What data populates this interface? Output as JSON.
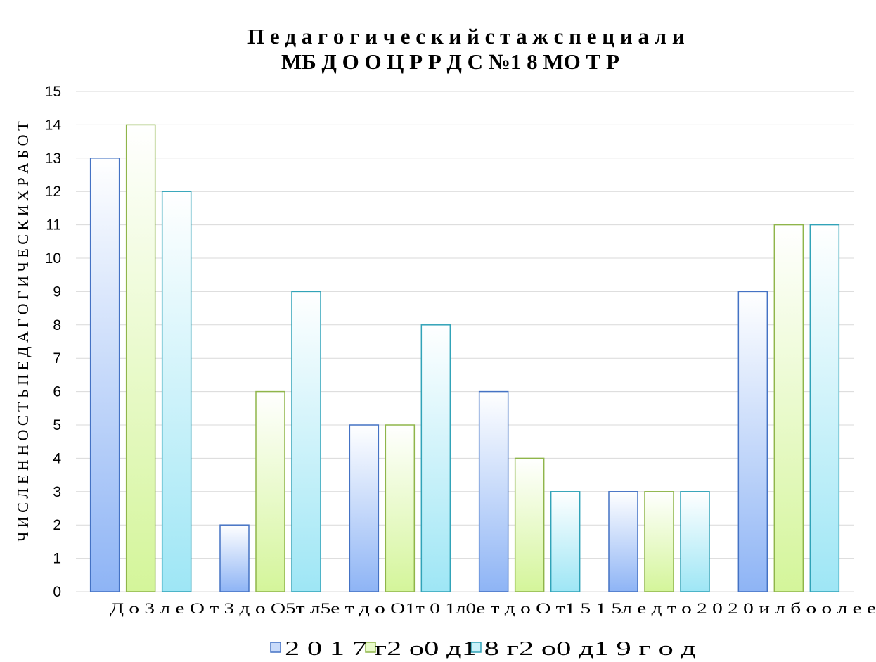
{
  "chart_data": {
    "type": "bar",
    "title_line1": "П е д а г о г и ч е с к и й   с т а ж   с п е ц и а л и",
    "title_line2": "МБ Д О О   Ц Р Р   Д С   №1 8   МО Т Р",
    "ylabel": "Ч И С Л Е Н Н О С Т Ь   П Е Д А Г О Г И Ч Е С К И Х   Р А Б О Т",
    "ylim": [
      0,
      15
    ],
    "yticks": [
      0,
      1,
      2,
      3,
      4,
      5,
      6,
      7,
      8,
      9,
      10,
      11,
      12,
      13,
      14,
      15
    ],
    "grid": true,
    "legend_position": "bottom",
    "x_tick_text": "Д о    3    л е О т    3    д о   О5т   л5е т д о   О1т 0   1л0е т д о О т1  5 1  5л е д т о 2 0 2  0 и л б о о л е е",
    "categories": [
      "До 3 лет",
      "От 3 до 5 лет",
      "От 5 до 10 лет",
      "От 10 до 15 лет",
      "От 15 до 20 лет",
      "20 и более"
    ],
    "series": [
      {
        "name": "2 0 1 7   г о д",
        "values": [
          13,
          2,
          5,
          6,
          3,
          9
        ],
        "color": "#8eb4f5",
        "stroke": "#4472c4"
      },
      {
        "name": "2 0 1 8   г о д",
        "values": [
          14,
          6,
          5,
          4,
          3,
          11
        ],
        "color": "#d4f59a",
        "stroke": "#8fb54a"
      },
      {
        "name": "2 0 1 9   г о д",
        "values": [
          12,
          9,
          8,
          3,
          3,
          11
        ],
        "color": "#9ee6f5",
        "stroke": "#31a3b8"
      }
    ],
    "legend_text": "2  0  1  7    г2 о0 д1  8    г2 о0 д1  9     г  о  д"
  }
}
